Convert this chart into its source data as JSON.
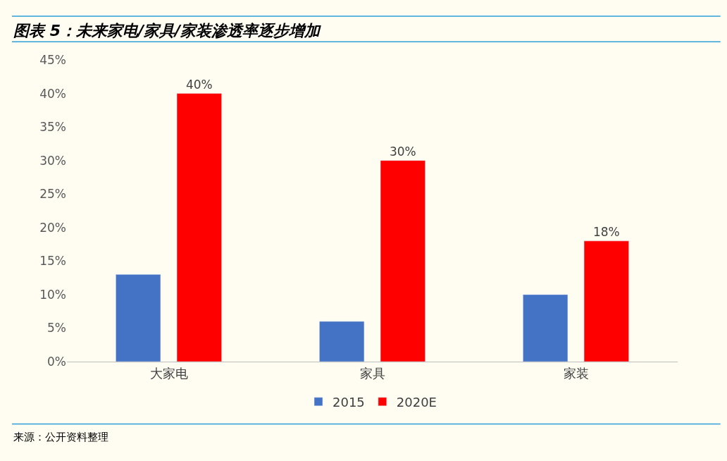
{
  "chart_data": {
    "type": "bar",
    "title": "图表 5：未来家电/家具/家装渗透率逐步增加",
    "categories": [
      "大家电",
      "家具",
      "家装"
    ],
    "series": [
      {
        "name": "2015",
        "color": "#4472c4",
        "values": [
          13,
          6,
          10
        ]
      },
      {
        "name": "2020E",
        "color": "#ff0000",
        "values": [
          40,
          30,
          18
        ],
        "value_labels": [
          "40%",
          "30%",
          "18%"
        ]
      }
    ],
    "ylim": [
      0,
      45
    ],
    "yticks": [
      {
        "value": 0,
        "label": "0%"
      },
      {
        "value": 5,
        "label": "5%"
      },
      {
        "value": 10,
        "label": "10%"
      },
      {
        "value": 15,
        "label": "15%"
      },
      {
        "value": 20,
        "label": "20%"
      },
      {
        "value": 25,
        "label": "25%"
      },
      {
        "value": 30,
        "label": "30%"
      },
      {
        "value": 35,
        "label": "35%"
      },
      {
        "value": 40,
        "label": "40%"
      },
      {
        "value": 45,
        "label": "45%"
      }
    ],
    "grid": false,
    "legend": "bottom",
    "annotations": [
      "来源：公开资料整理"
    ]
  }
}
